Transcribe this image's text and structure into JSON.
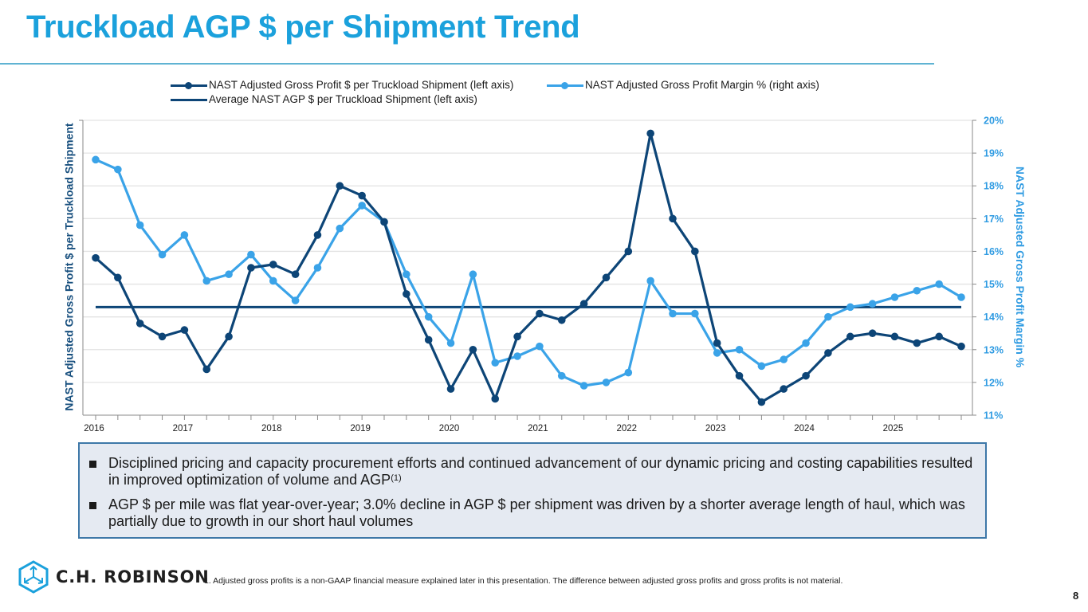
{
  "page": {
    "title": "Truckload AGP $ per Shipment Trend",
    "page_number": "8",
    "logo_text": "C.H. ROBINSON",
    "footnote": "1.   Adjusted gross profits is a non-GAAP financial measure explained later in this presentation. The difference between adjusted gross profits and gross profits is not material.",
    "bullets": [
      {
        "text": "Disciplined pricing and capacity procurement efforts and continued advancement of our dynamic pricing and costing capabilities resulted in improved optimization of volume and AGP",
        "sup": "(1)"
      },
      {
        "text": "AGP $ per mile was flat year-over-year; 3.0% decline in AGP $ per shipment was driven by a shorter average length of haul, which was partially due to growth in our short haul volumes",
        "sup": ""
      }
    ]
  },
  "colors": {
    "title": "#1ba1dc",
    "dark_series": "#0d4577",
    "light_series": "#3aa3e8",
    "avg_series": "#0d4577",
    "right_axis_text": "#2f9be2",
    "left_axis_text": "#174f7e"
  },
  "chart_data": {
    "type": "line",
    "title": "",
    "xlabel": "",
    "ylabel": "NAST Adjusted Gross Profit $ per Truckload Shipment",
    "ylabel_right": "NAST Adjusted Gross Profit Margin %",
    "legend_position": "top",
    "grid": true,
    "x_tick_labels": [
      "2016",
      "2017",
      "2018",
      "2019",
      "2020",
      "2021",
      "2022",
      "2023",
      "2024",
      "2025"
    ],
    "x_periods": [
      "2016 Q1",
      "2016 Q2",
      "2016 Q3",
      "2016 Q4",
      "2017 Q1",
      "2017 Q2",
      "2017 Q3",
      "2017 Q4",
      "2018 Q1",
      "2018 Q2",
      "2018 Q3",
      "2018 Q4",
      "2019 Q1",
      "2019 Q2",
      "2019 Q3",
      "2019 Q4",
      "2020 Q1",
      "2020 Q2",
      "2020 Q3",
      "2020 Q4",
      "2021 Q1",
      "2021 Q2",
      "2021 Q3",
      "2021 Q4",
      "2022 Q1",
      "2022 Q2",
      "2022 Q3",
      "2022 Q4",
      "2023 Q1",
      "2023 Q2",
      "2023 Q3",
      "2023 Q4",
      "2024 Q1",
      "2024 Q2",
      "2024 Q3",
      "2024 Q4",
      "2025 Q1",
      "2025 Q2",
      "2025 Q3",
      "2025 Q4"
    ],
    "y_right_ticks": [
      "11%",
      "12%",
      "13%",
      "14%",
      "15%",
      "16%",
      "17%",
      "18%",
      "19%",
      "20%"
    ],
    "y_right_range": [
      11,
      20
    ],
    "y_left_note": "left axis has no tick labels; values expressed in right-axis-equivalent gridline units",
    "y_left_range": [
      11,
      20
    ],
    "series": [
      {
        "name": "NAST Adjusted Gross Profit $ per Truckload Shipment (left axis)",
        "axis": "left",
        "markers": true,
        "values": [
          15.8,
          15.2,
          13.8,
          13.4,
          13.6,
          12.4,
          13.4,
          15.5,
          15.6,
          15.3,
          16.5,
          18.0,
          17.7,
          16.9,
          14.7,
          13.3,
          11.8,
          13.0,
          11.5,
          13.4,
          14.1,
          13.9,
          14.4,
          15.2,
          16.0,
          19.6,
          17.0,
          16.0,
          13.2,
          12.2,
          11.4,
          11.8,
          12.2,
          12.9,
          13.4,
          13.5,
          13.4,
          13.2,
          13.4,
          13.1
        ]
      },
      {
        "name": "NAST Adjusted Gross Profit Margin % (right axis)",
        "axis": "right",
        "markers": true,
        "values": [
          18.8,
          18.5,
          16.8,
          15.9,
          16.5,
          15.1,
          15.3,
          15.9,
          15.1,
          14.5,
          15.5,
          16.7,
          17.4,
          16.9,
          15.3,
          14.0,
          13.2,
          15.3,
          12.6,
          12.8,
          13.1,
          12.2,
          11.9,
          12.0,
          12.3,
          15.1,
          14.1,
          14.1,
          12.9,
          13.0,
          12.5,
          12.7,
          13.2,
          14.0,
          14.3,
          14.4,
          14.6,
          14.8,
          15.0,
          14.6
        ]
      },
      {
        "name": "Average NAST AGP $ per Truckload Shipment (left axis)",
        "axis": "left",
        "markers": false,
        "values": [
          14.3
        ]
      }
    ]
  }
}
